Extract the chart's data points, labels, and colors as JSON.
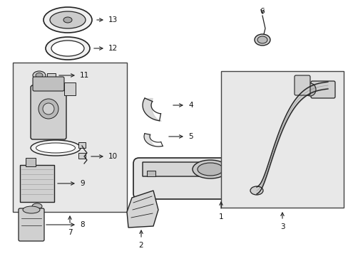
{
  "background_color": "#ffffff",
  "fig_width": 4.89,
  "fig_height": 3.6,
  "dpi": 100,
  "line_color": "#222222",
  "text_color": "#111111",
  "label_fontsize": 7.5,
  "box_fill": "#e8e8e8",
  "part_fill": "#d0d0d0",
  "part_fill2": "#f0f0f0",
  "tank_fill": "#e5e5e5"
}
